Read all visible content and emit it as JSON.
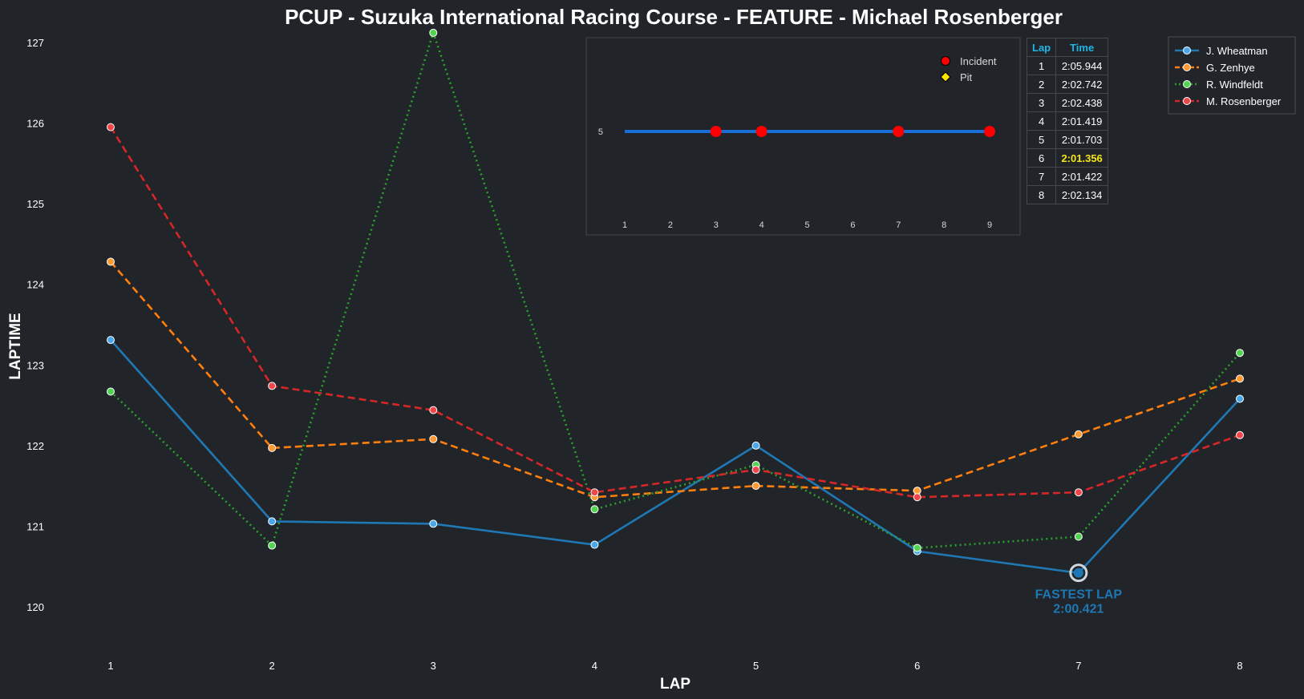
{
  "chart_data": [
    {
      "type": "line",
      "title": "PCUP - Suzuka International Racing Course - FEATURE - Michael Rosenberger",
      "xlabel": "LAP",
      "ylabel": "LAPTIME",
      "x": [
        1,
        2,
        3,
        4,
        5,
        6,
        7,
        8
      ],
      "x_tick_labels": [
        "1",
        "2",
        "3",
        "4",
        "5",
        "6",
        "7",
        "8"
      ],
      "ylim": [
        119.4,
        127.1
      ],
      "y_ticks": [
        120,
        121,
        122,
        123,
        124,
        125,
        126,
        127
      ],
      "grid": false,
      "legend_position": "top-right",
      "series": [
        {
          "name": "J. Wheatman",
          "color": "#1f77b4",
          "style": "solid",
          "values": [
            123.31,
            121.06,
            121.03,
            120.77,
            122.0,
            120.69,
            120.42,
            122.58
          ]
        },
        {
          "name": "G. Zenhye",
          "color": "#ff7f0e",
          "style": "dashed",
          "values": [
            124.28,
            121.97,
            122.08,
            121.36,
            121.5,
            121.44,
            122.14,
            122.83
          ]
        },
        {
          "name": "R. Windfeldt",
          "color": "#2ca02c",
          "style": "dotted",
          "values": [
            122.67,
            120.76,
            127.12,
            121.21,
            121.76,
            120.73,
            120.87,
            123.15
          ]
        },
        {
          "name": "M. Rosenberger",
          "color": "#d62728",
          "style": "dashed",
          "values": [
            125.95,
            122.74,
            122.44,
            121.42,
            121.7,
            121.36,
            121.42,
            122.13
          ]
        }
      ],
      "annotations": [
        {
          "label": "FASTEST LAP",
          "value_text": "2:00.421",
          "x": 7,
          "y": 120.421,
          "color": "#1f77b4"
        }
      ]
    },
    {
      "type": "scatter",
      "name": "events-inset",
      "x": [
        1,
        2,
        3,
        4,
        5,
        6,
        7,
        8,
        9
      ],
      "x_tick_labels": [
        "1",
        "2",
        "3",
        "4",
        "5",
        "6",
        "7",
        "8",
        "9"
      ],
      "y_tick_labels": [
        "5"
      ],
      "ylim": [
        4,
        6
      ],
      "track": {
        "y": 5,
        "from_x": 1,
        "to_x": 9,
        "color": "#1a6fd6"
      },
      "legend": [
        {
          "label": "Incident",
          "marker": "circle",
          "color": "#ff0000"
        },
        {
          "label": "Pit",
          "marker": "diamond",
          "color": "#ffe600"
        }
      ],
      "incidents": [
        3,
        4,
        7,
        9
      ],
      "pits": []
    },
    {
      "type": "table",
      "headers": [
        "Lap",
        "Time"
      ],
      "rows": [
        [
          "1",
          "2:05.944"
        ],
        [
          "2",
          "2:02.742"
        ],
        [
          "3",
          "2:02.438"
        ],
        [
          "4",
          "2:01.419"
        ],
        [
          "5",
          "2:01.703"
        ],
        [
          "6",
          "2:01.356"
        ],
        [
          "7",
          "2:01.422"
        ],
        [
          "8",
          "2:02.134"
        ]
      ],
      "best_row": 5
    }
  ]
}
